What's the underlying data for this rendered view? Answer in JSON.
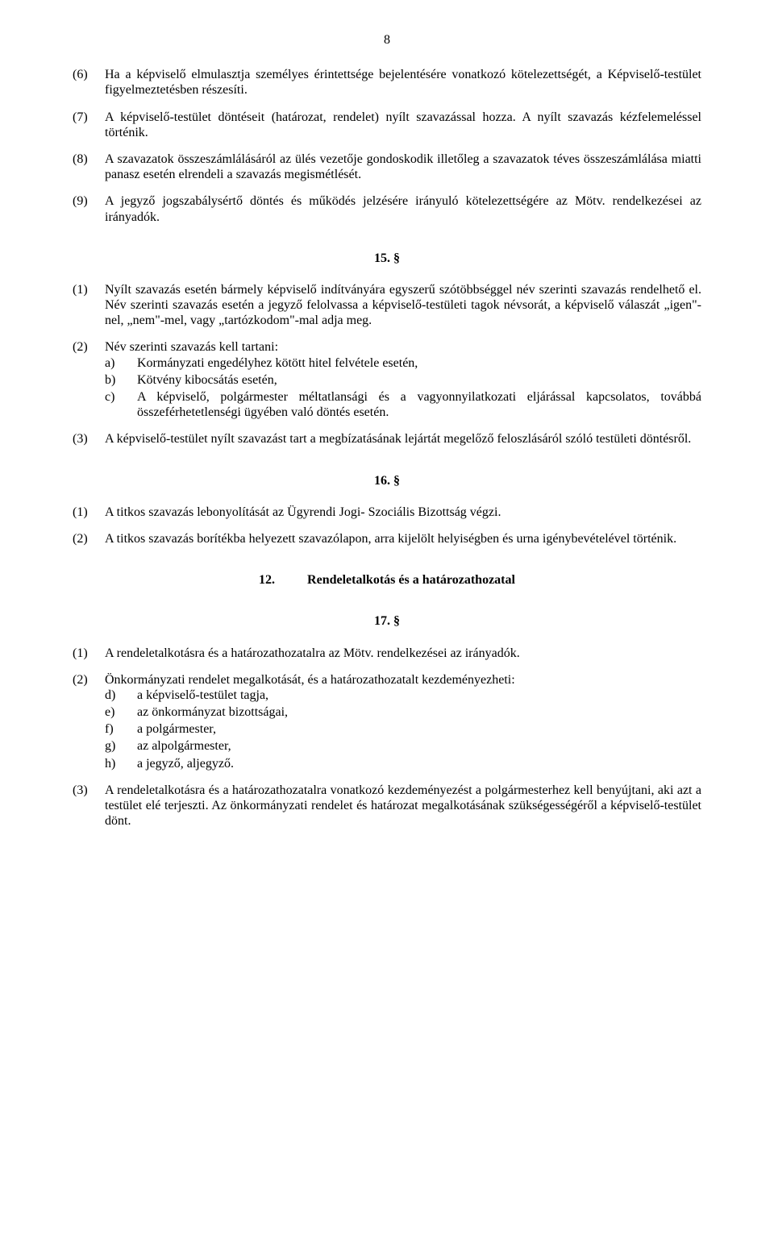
{
  "pageNumber": "8",
  "p6": {
    "num": "(6)",
    "text": "Ha a képviselő elmulasztja személyes érintettsége bejelentésére vonatkozó kötelezettségét, a Képviselő-testület figyelmeztetésben részesíti."
  },
  "p7": {
    "num": "(7)",
    "text": "A képviselő-testület döntéseit (határozat, rendelet) nyílt szavazással hozza. A nyílt szavazás kézfelemeléssel történik."
  },
  "p8": {
    "num": "(8)",
    "text": "A szavazatok összeszámlálásáról az ülés vezetője gondoskodik illetőleg a szavazatok téves összeszámlálása miatti panasz esetén elrendeli a szavazás megismétlését."
  },
  "p9": {
    "num": "(9)",
    "text": "A jegyző jogszabálysértő döntés és működés jelzésére irányuló kötelezettségére az Mötv. rendelkezései az irányadók."
  },
  "s15": "15. §",
  "s15_1": {
    "num": "(1)",
    "text": "Nyílt szavazás esetén bármely képviselő indítványára egyszerű szótöbbséggel név szerinti szavazás rendelhető el. Név szerinti szavazás esetén a jegyző felolvassa a képviselő-testületi tagok névsorát, a képviselő válaszát „igen\"-nel, „nem\"-mel, vagy „tartózkodom\"-mal adja meg."
  },
  "s15_2": {
    "num": "(2)",
    "intro": "Név szerinti szavazás kell tartani:",
    "a": {
      "lbl": "a)",
      "text": "Kormányzati engedélyhez kötött hitel felvétele esetén,"
    },
    "b": {
      "lbl": "b)",
      "text": "Kötvény kibocsátás esetén,"
    },
    "c": {
      "lbl": "c)",
      "text": "A képviselő, polgármester méltatlansági és a vagyonnyilatkozati eljárással kapcsolatos, továbbá összeférhetetlenségi ügyében való döntés esetén."
    }
  },
  "s15_3": {
    "num": "(3)",
    "text": "A képviselő-testület nyílt szavazást tart a megbízatásának lejártát megelőző feloszlásáról szóló testületi döntésről."
  },
  "s16": "16. §",
  "s16_1": {
    "num": "(1)",
    "text": "A titkos szavazás lebonyolítását az Ügyrendi Jogi- Szociális Bizottság végzi."
  },
  "s16_2": {
    "num": "(2)",
    "text": "A titkos szavazás borítékba helyezett szavazólapon, arra kijelölt helyiségben és urna igénybevételével történik."
  },
  "h12": {
    "num": "12.",
    "title": "Rendeletalkotás és a határozathozatal"
  },
  "s17": "17. §",
  "s17_1": {
    "num": "(1)",
    "text": "A rendeletalkotásra és a határozathozatalra az Mötv. rendelkezései az irányadók."
  },
  "s17_2": {
    "num": "(2)",
    "intro": "Önkormányzati rendelet megalkotását, és a határozathozatalt kezdeményezheti:",
    "d": {
      "lbl": "d)",
      "text": "a képviselő-testület tagja,"
    },
    "e": {
      "lbl": "e)",
      "text": "az önkormányzat bizottságai,"
    },
    "f": {
      "lbl": "f)",
      "text": "a polgármester,"
    },
    "g": {
      "lbl": "g)",
      "text": "az alpolgármester,"
    },
    "h": {
      "lbl": "h)",
      "text": "a jegyző, aljegyző."
    }
  },
  "s17_3": {
    "num": "(3)",
    "text": "A rendeletalkotásra és a határozathozatalra vonatkozó kezdeményezést a polgármesterhez kell benyújtani, aki azt a testület elé terjeszti. Az önkormányzati rendelet és határozat megalkotásának szükségességéről a képviselő-testület dönt."
  }
}
